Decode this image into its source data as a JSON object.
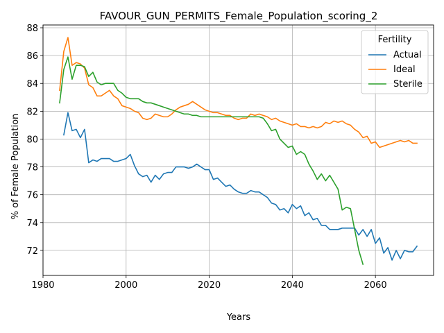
{
  "chart_data": {
    "type": "line",
    "title": "FAVOUR_GUN_PERMITS_Female_Population_scoring_2",
    "xlabel": "Years",
    "ylabel": "% of Female Population",
    "xlim": [
      1980,
      2074
    ],
    "ylim": [
      70.2,
      88.2
    ],
    "xticks": [
      1980,
      2000,
      2020,
      2040,
      2060
    ],
    "yticks": [
      72,
      74,
      76,
      78,
      80,
      82,
      84,
      86,
      88
    ],
    "grid": true,
    "legend": {
      "title": "Fertility",
      "placement": "top-right"
    },
    "series": [
      {
        "name": "Actual",
        "color": "#1f77b4",
        "x": [
          1985,
          1986,
          1987,
          1988,
          1989,
          1990,
          1991,
          1992,
          1993,
          1994,
          1995,
          1996,
          1997,
          1998,
          1999,
          2000,
          2001,
          2002,
          2003,
          2004,
          2005,
          2006,
          2007,
          2008,
          2009,
          2010,
          2011,
          2012,
          2013,
          2014,
          2015,
          2016,
          2017,
          2018,
          2019,
          2020,
          2021,
          2022,
          2023,
          2024,
          2025,
          2026,
          2027,
          2028,
          2029,
          2030,
          2031,
          2032,
          2033,
          2034,
          2035,
          2036,
          2037,
          2038,
          2039,
          2040,
          2041,
          2042,
          2043,
          2044,
          2045,
          2046,
          2047,
          2048,
          2049,
          2050,
          2051,
          2052,
          2053,
          2054,
          2055,
          2056,
          2057,
          2058,
          2059,
          2060,
          2061,
          2062,
          2063,
          2064,
          2065,
          2066,
          2067,
          2068,
          2069,
          2070
        ],
        "values": [
          80.3,
          81.9,
          80.6,
          80.7,
          80.1,
          80.7,
          78.3,
          78.5,
          78.4,
          78.6,
          78.6,
          78.6,
          78.4,
          78.4,
          78.5,
          78.6,
          78.9,
          78.1,
          77.5,
          77.3,
          77.4,
          76.9,
          77.4,
          77.1,
          77.5,
          77.6,
          77.6,
          78.0,
          78.0,
          78.0,
          77.9,
          78.0,
          78.2,
          78.0,
          77.8,
          77.8,
          77.1,
          77.2,
          76.9,
          76.6,
          76.7,
          76.4,
          76.2,
          76.1,
          76.1,
          76.3,
          76.2,
          76.2,
          76.0,
          75.8,
          75.4,
          75.3,
          74.9,
          75.0,
          74.7,
          75.3,
          75.0,
          75.2,
          74.5,
          74.7,
          74.2,
          74.3,
          73.8,
          73.8,
          73.5,
          73.5,
          73.5,
          73.6,
          73.6,
          73.6,
          73.6,
          73.1,
          73.5,
          73.0,
          73.5,
          72.5,
          72.9,
          71.8,
          72.2,
          71.3,
          72.0,
          71.4,
          72.0,
          71.9,
          71.9,
          72.3
        ]
      },
      {
        "name": "Ideal",
        "color": "#ff7f0e",
        "x": [
          1984,
          1985,
          1986,
          1987,
          1988,
          1989,
          1990,
          1991,
          1992,
          1993,
          1994,
          1995,
          1996,
          1997,
          1998,
          1999,
          2000,
          2001,
          2002,
          2003,
          2004,
          2005,
          2006,
          2007,
          2008,
          2009,
          2010,
          2011,
          2012,
          2013,
          2014,
          2015,
          2016,
          2017,
          2018,
          2019,
          2020,
          2021,
          2022,
          2023,
          2024,
          2025,
          2026,
          2027,
          2028,
          2029,
          2030,
          2031,
          2032,
          2033,
          2034,
          2035,
          2036,
          2037,
          2038,
          2039,
          2040,
          2041,
          2042,
          2043,
          2044,
          2045,
          2046,
          2047,
          2048,
          2049,
          2050,
          2051,
          2052,
          2053,
          2054,
          2055,
          2056,
          2057,
          2058,
          2059,
          2060,
          2061,
          2062,
          2063,
          2064,
          2065,
          2066,
          2067,
          2068,
          2069,
          2070
        ],
        "values": [
          83.5,
          86.3,
          87.3,
          85.3,
          85.5,
          85.4,
          85.1,
          83.9,
          83.7,
          83.1,
          83.1,
          83.3,
          83.5,
          83.1,
          82.9,
          82.4,
          82.3,
          82.2,
          82.0,
          81.9,
          81.5,
          81.4,
          81.5,
          81.8,
          81.7,
          81.6,
          81.6,
          81.8,
          82.1,
          82.3,
          82.4,
          82.5,
          82.7,
          82.5,
          82.3,
          82.1,
          82.0,
          81.9,
          81.9,
          81.8,
          81.7,
          81.7,
          81.5,
          81.4,
          81.5,
          81.5,
          81.8,
          81.7,
          81.8,
          81.7,
          81.6,
          81.4,
          81.5,
          81.3,
          81.2,
          81.1,
          81.0,
          81.1,
          80.9,
          80.9,
          80.8,
          80.9,
          80.8,
          80.9,
          81.2,
          81.1,
          81.3,
          81.2,
          81.3,
          81.1,
          81.0,
          80.7,
          80.5,
          80.1,
          80.2,
          79.7,
          79.8,
          79.4,
          79.5,
          79.6,
          79.7,
          79.8,
          79.9,
          79.8,
          79.9,
          79.7,
          79.7
        ]
      },
      {
        "name": "Sterile",
        "color": "#2ca02c",
        "x": [
          1984,
          1985,
          1986,
          1987,
          1988,
          1989,
          1990,
          1991,
          1992,
          1993,
          1994,
          1995,
          1996,
          1997,
          1998,
          1999,
          2000,
          2001,
          2002,
          2003,
          2004,
          2005,
          2006,
          2007,
          2008,
          2009,
          2010,
          2011,
          2012,
          2013,
          2014,
          2015,
          2016,
          2017,
          2018,
          2019,
          2020,
          2021,
          2022,
          2023,
          2024,
          2025,
          2026,
          2027,
          2028,
          2029,
          2030,
          2031,
          2032,
          2033,
          2034,
          2035,
          2036,
          2037,
          2038,
          2039,
          2040,
          2041,
          2042,
          2043,
          2044,
          2045,
          2046,
          2047,
          2048,
          2049,
          2050,
          2051,
          2052,
          2053,
          2054,
          2055,
          2056,
          2057
        ],
        "values": [
          82.6,
          85.0,
          85.9,
          84.3,
          85.3,
          85.3,
          85.2,
          84.5,
          84.8,
          84.1,
          83.9,
          84.0,
          84.0,
          84.0,
          83.5,
          83.3,
          83.0,
          82.9,
          82.9,
          82.9,
          82.7,
          82.6,
          82.6,
          82.5,
          82.4,
          82.3,
          82.2,
          82.1,
          82.0,
          81.9,
          81.8,
          81.8,
          81.7,
          81.7,
          81.6,
          81.6,
          81.6,
          81.6,
          81.6,
          81.6,
          81.6,
          81.6,
          81.6,
          81.6,
          81.6,
          81.6,
          81.6,
          81.6,
          81.6,
          81.5,
          81.1,
          80.6,
          80.7,
          80.0,
          79.7,
          79.4,
          79.5,
          78.9,
          79.1,
          78.9,
          78.2,
          77.7,
          77.1,
          77.5,
          77.0,
          77.4,
          76.9,
          76.4,
          74.9,
          75.1,
          75.0,
          73.5,
          72.0,
          71.0
        ]
      }
    ]
  }
}
